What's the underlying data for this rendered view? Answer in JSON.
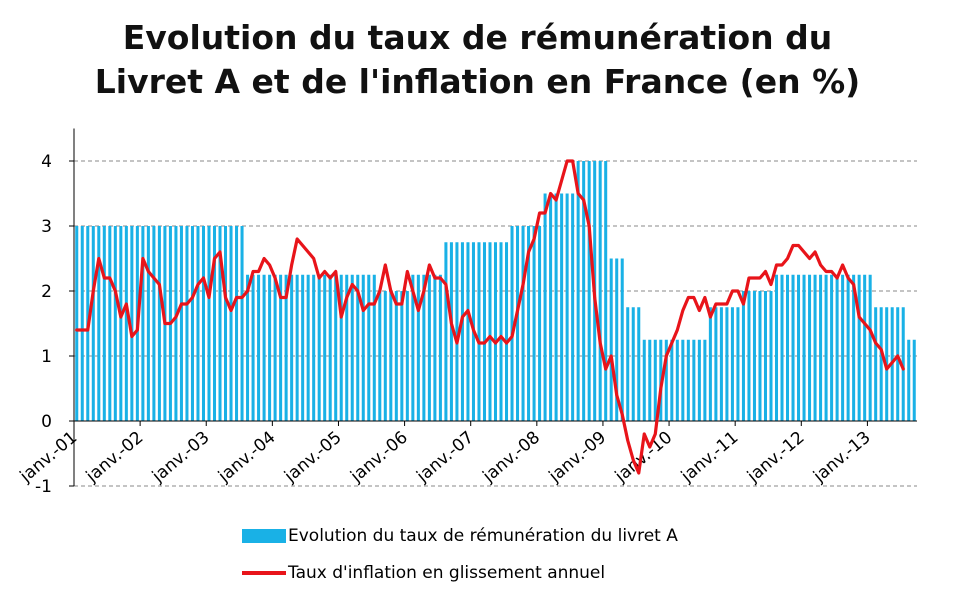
{
  "title_line1": "Evolution du taux de rémunération du",
  "title_line2": "Livret A et de l'inflation en France (en %)",
  "chart_data": {
    "type": "bar+line",
    "ylim": [
      -1,
      4.5
    ],
    "yticks": [
      -1,
      0,
      1,
      2,
      3,
      4
    ],
    "grid": true,
    "legend_position": "bottom",
    "x_tick_labels": [
      "janv.-01",
      "janv.-02",
      "janv.-03",
      "janv.-04",
      "janv.-05",
      "janv.-06",
      "janv.-07",
      "janv.-08",
      "janv.-09",
      "janv.-10",
      "janv.-11",
      "janv.-12",
      "janv.-13"
    ],
    "colors": {
      "bars": "#19b1e6",
      "line": "#e8141a"
    },
    "series": [
      {
        "name": "Evolution du taux de rémunération du livret A",
        "type": "bar",
        "steps": [
          {
            "from": "2001-01",
            "to": "2003-07",
            "value": 3.0
          },
          {
            "from": "2003-08",
            "to": "2005-07",
            "value": 2.25
          },
          {
            "from": "2005-08",
            "to": "2006-01",
            "value": 2.0
          },
          {
            "from": "2006-02",
            "to": "2006-07",
            "value": 2.25
          },
          {
            "from": "2006-08",
            "to": "2007-07",
            "value": 2.75
          },
          {
            "from": "2007-08",
            "to": "2008-01",
            "value": 3.0
          },
          {
            "from": "2008-02",
            "to": "2008-07",
            "value": 3.5
          },
          {
            "from": "2008-08",
            "to": "2009-01",
            "value": 4.0
          },
          {
            "from": "2009-02",
            "to": "2009-04",
            "value": 2.5
          },
          {
            "from": "2009-05",
            "to": "2009-07",
            "value": 1.75
          },
          {
            "from": "2009-08",
            "to": "2010-07",
            "value": 1.25
          },
          {
            "from": "2010-08",
            "to": "2011-01",
            "value": 1.75
          },
          {
            "from": "2011-02",
            "to": "2011-07",
            "value": 2.0
          },
          {
            "from": "2011-08",
            "to": "2013-01",
            "value": 2.25
          },
          {
            "from": "2013-02",
            "to": "2013-07",
            "value": 1.75
          },
          {
            "from": "2013-08",
            "to": "2013-09",
            "value": 1.25
          }
        ]
      },
      {
        "name": "Taux d'inflation en glissement annuel",
        "type": "line",
        "start": "2001-01",
        "values": [
          1.4,
          1.4,
          1.4,
          2.0,
          2.5,
          2.2,
          2.2,
          2.0,
          1.6,
          1.8,
          1.3,
          1.4,
          2.5,
          2.3,
          2.2,
          2.1,
          1.5,
          1.5,
          1.6,
          1.8,
          1.8,
          1.9,
          2.1,
          2.2,
          1.9,
          2.5,
          2.6,
          1.9,
          1.7,
          1.9,
          1.9,
          2.0,
          2.3,
          2.3,
          2.5,
          2.4,
          2.2,
          1.9,
          1.9,
          2.4,
          2.8,
          2.7,
          2.6,
          2.5,
          2.2,
          2.3,
          2.2,
          2.3,
          1.6,
          1.9,
          2.1,
          2.0,
          1.7,
          1.8,
          1.8,
          2.0,
          2.4,
          2.0,
          1.8,
          1.8,
          2.3,
          2.0,
          1.7,
          2.0,
          2.4,
          2.2,
          2.2,
          2.1,
          1.5,
          1.2,
          1.6,
          1.7,
          1.4,
          1.2,
          1.2,
          1.3,
          1.2,
          1.3,
          1.2,
          1.3,
          1.7,
          2.1,
          2.6,
          2.8,
          3.2,
          3.2,
          3.5,
          3.4,
          3.7,
          4.0,
          4.0,
          3.5,
          3.4,
          3.0,
          1.9,
          1.2,
          0.8,
          1.0,
          0.4,
          0.1,
          -0.3,
          -0.6,
          -0.8,
          -0.2,
          -0.4,
          -0.2,
          0.5,
          1.0,
          1.2,
          1.4,
          1.7,
          1.9,
          1.9,
          1.7,
          1.9,
          1.6,
          1.8,
          1.8,
          1.8,
          2.0,
          2.0,
          1.8,
          2.2,
          2.2,
          2.2,
          2.3,
          2.1,
          2.4,
          2.4,
          2.5,
          2.7,
          2.7,
          2.6,
          2.5,
          2.6,
          2.4,
          2.3,
          2.3,
          2.2,
          2.4,
          2.2,
          2.1,
          1.6,
          1.5,
          1.4,
          1.2,
          1.1,
          0.8,
          0.9,
          1.0,
          0.8
        ]
      }
    ]
  }
}
